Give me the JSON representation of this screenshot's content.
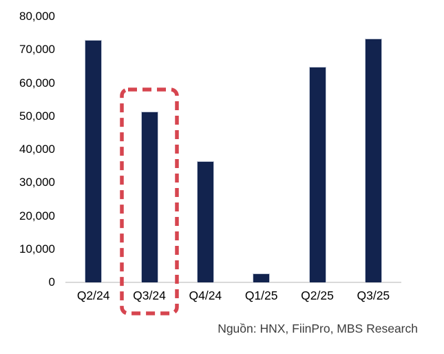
{
  "chart_data": {
    "type": "bar",
    "title": "",
    "xlabel": "",
    "ylabel": "",
    "categories": [
      "Q2/24",
      "Q3/24",
      "Q4/24",
      "Q1/25",
      "Q2/25",
      "Q3/25"
    ],
    "values": [
      73000,
      51500,
      36400,
      2700,
      64900,
      73300
    ],
    "ylim": [
      0,
      80000
    ],
    "ytick_step": 10000,
    "ytick_labels": [
      "0",
      "10,000",
      "20,000",
      "30,000",
      "40,000",
      "50,000",
      "60,000",
      "70,000",
      "80,000"
    ],
    "grid": false,
    "legend": null,
    "bar_color": "#12234e",
    "bar_border_color": "#c4cbd9",
    "axis_line_color": "#d9d9d9",
    "highlight_box": {
      "category": "Q3/24",
      "index": 1,
      "color": "#d6454f",
      "style": "dashed"
    },
    "source_note": "Nguồn: HNX, FiinPro, MBS Research"
  }
}
